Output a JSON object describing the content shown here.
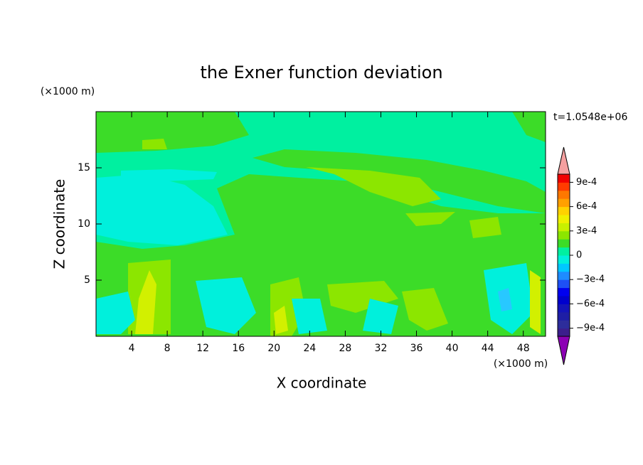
{
  "chart_data": {
    "type": "contour",
    "title": "the Exner function deviation",
    "x_label": "X coordinate",
    "y_label": "Z coordinate",
    "x_unit": "(×1000 m)",
    "y_unit": "(×1000 m)",
    "time_label": "t=1.0548e+06",
    "xlim": [
      0,
      50.5
    ],
    "ylim": [
      0,
      20
    ],
    "xticks": [
      4,
      8,
      12,
      16,
      20,
      24,
      28,
      32,
      36,
      40,
      44,
      48
    ],
    "yticks": [
      5,
      10,
      15
    ],
    "colorbar": {
      "clim": [
        -0.001,
        0.001
      ],
      "under_color": "#8c00b4",
      "over_color": "#f5a0a0",
      "colors": [
        "#3c1e8c",
        "#2d2d9b",
        "#1e1ea5",
        "#1414b9",
        "#0000cd",
        "#0000f0",
        "#1e50f5",
        "#1e8cff",
        "#00c8ff",
        "#00f0dc",
        "#00f0a0",
        "#3cdc28",
        "#8ce600",
        "#c8f000",
        "#f0f000",
        "#ffd200",
        "#ffa000",
        "#ff7800",
        "#ff3c00",
        "#f00000"
      ],
      "ticks": [
        {
          "value": 0.0009,
          "label": "9e-4"
        },
        {
          "value": 0.0006,
          "label": "6e-4"
        },
        {
          "value": 0.0003,
          "label": "3e-4"
        },
        0,
        {
          "value": -0.0003,
          "label": "−3e-4"
        },
        {
          "value": -0.0006,
          "label": "−6e-4"
        },
        {
          "value": -0.0009,
          "label": "−9e-4"
        }
      ]
    }
  }
}
